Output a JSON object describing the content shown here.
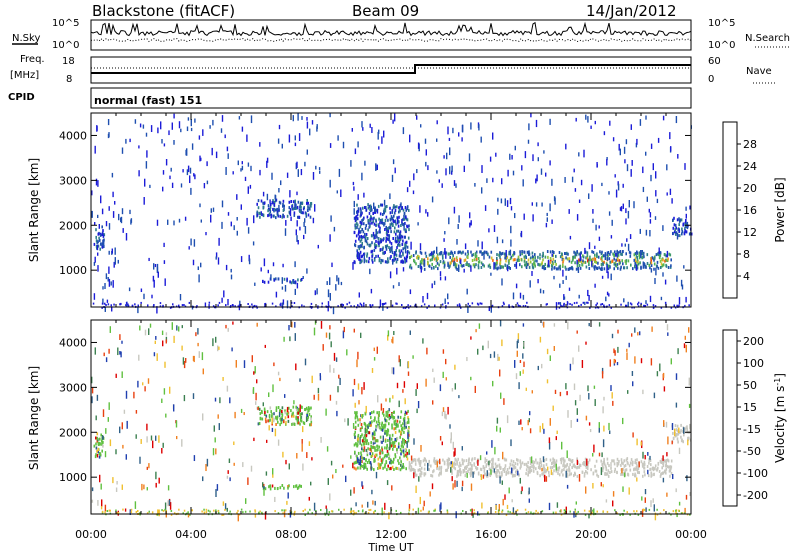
{
  "header": {
    "station": "Blackstone (fitACF)",
    "beam": "Beam 09",
    "date": "14/Jan/2012"
  },
  "aux_panels": {
    "nsky_label": "N.Sky",
    "nsky_ticks": [
      "10^5",
      "10^0"
    ],
    "nsearch_label": "N.Search",
    "nsearch_ticks": [
      "10^5",
      "10^0"
    ],
    "freq_label": "Freq.",
    "freq_unit": "[MHz]",
    "freq_ticks": [
      "18",
      "8"
    ],
    "nave_label": "Nave",
    "nave_ticks": [
      "60",
      "0"
    ],
    "cpid_label": "CPID",
    "cpid_value": "normal (fast) 151"
  },
  "chart_data": [
    {
      "type": "heatmap",
      "panel": "power",
      "title": "",
      "xlabel": "Time UT",
      "ylabel": "Slant Range [km]",
      "x_ticks": [
        "00:00",
        "04:00",
        "08:00",
        "12:00",
        "16:00",
        "20:00",
        "00:00"
      ],
      "y_ticks": [
        1000,
        2000,
        3000,
        4000
      ],
      "xlim_hours": [
        0,
        24
      ],
      "ylim_km": [
        180,
        4500
      ],
      "colorbar": {
        "label": "Power [dB]",
        "ticks": [
          "4",
          "8",
          "12",
          "16",
          "20",
          "24",
          "28"
        ],
        "colors": [
          "#1c1cd8",
          "#1f4fb0",
          "#2e7d8c",
          "#3f9a6a",
          "#53b450",
          "#8fc33d",
          "#d9c030",
          "#f0a020",
          "#f06a16",
          "#e42a10",
          "#cc0000"
        ]
      },
      "scatter_bands": [
        {
          "t_start": 0.1,
          "t_end": 0.5,
          "r_start": 1450,
          "r_end": 2000
        },
        {
          "t_start": 6.6,
          "t_end": 8.8,
          "r_start": 2200,
          "r_end": 2600
        },
        {
          "t_start": 6.8,
          "t_end": 8.4,
          "r_start": 750,
          "r_end": 850
        },
        {
          "t_start": 10.5,
          "t_end": 12.7,
          "r_start": 1200,
          "r_end": 2500
        },
        {
          "t_start": 12.7,
          "t_end": 23.2,
          "r_start": 1050,
          "r_end": 1450
        },
        {
          "t_start": 23.2,
          "t_end": 24,
          "r_start": 1800,
          "r_end": 2200
        }
      ]
    },
    {
      "type": "heatmap",
      "panel": "velocity",
      "title": "",
      "xlabel": "Time UT",
      "ylabel": "Slant Range [km]",
      "x_ticks": [
        "00:00",
        "04:00",
        "08:00",
        "12:00",
        "16:00",
        "20:00",
        "00:00"
      ],
      "y_ticks": [
        1000,
        2000,
        3000,
        4000
      ],
      "xlim_hours": [
        0,
        24
      ],
      "ylim_km": [
        180,
        4500
      ],
      "colorbar": {
        "label": "Velocity [m s",
        "label_sup": "-1",
        "label_end": "]",
        "ticks": [
          "200",
          "100",
          "50",
          "15",
          "-15",
          "-50",
          "-100",
          "-200"
        ],
        "colors": [
          "#2040b0",
          "#306088",
          "#3c8050",
          "#60c040",
          "#c8c8c0",
          "#f0c030",
          "#f08020",
          "#e84010",
          "#dd0000"
        ]
      },
      "scatter_bands": [
        {
          "t_start": 0.1,
          "t_end": 0.5,
          "r_start": 1450,
          "r_end": 2000
        },
        {
          "t_start": 6.6,
          "t_end": 8.8,
          "r_start": 2200,
          "r_end": 2600
        },
        {
          "t_start": 6.8,
          "t_end": 8.4,
          "r_start": 750,
          "r_end": 850
        },
        {
          "t_start": 10.5,
          "t_end": 12.7,
          "r_start": 1200,
          "r_end": 2500
        },
        {
          "t_start": 12.7,
          "t_end": 23.2,
          "r_start": 1050,
          "r_end": 1450
        },
        {
          "t_start": 23.2,
          "t_end": 24,
          "r_start": 1800,
          "r_end": 2200
        }
      ]
    }
  ]
}
